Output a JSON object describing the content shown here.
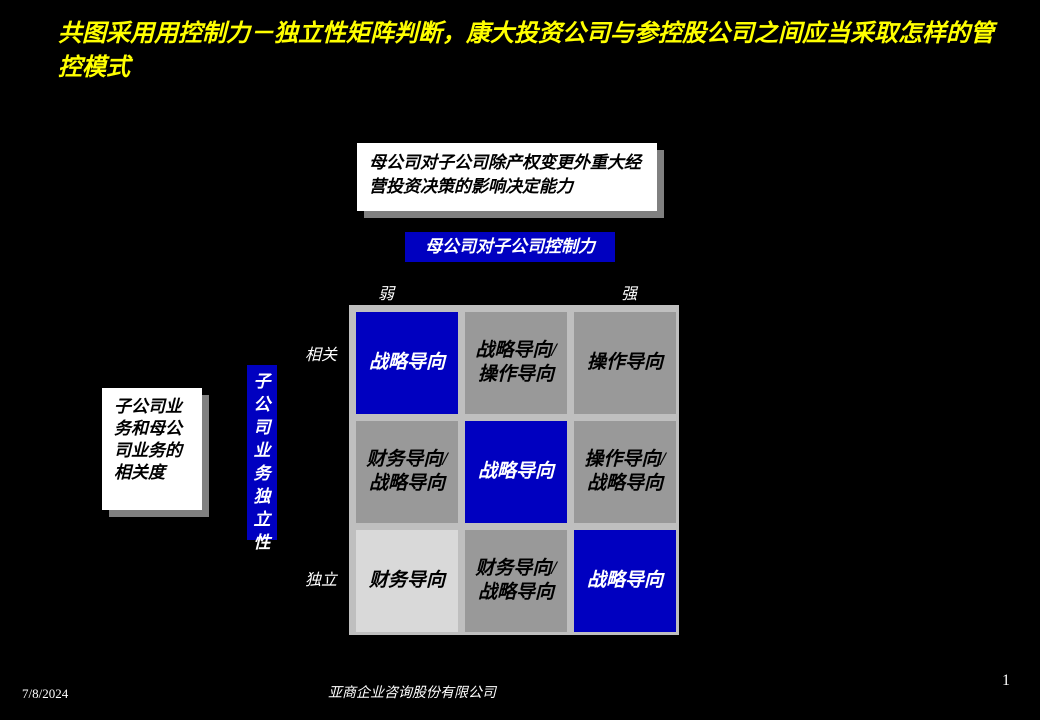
{
  "title": "共图采用用控制力－独立性矩阵判断，康大投资公司与参控股公司之间应当采取怎样的管控模式",
  "top_desc": "母公司对子公司除产权变更外重大经营投资决策的影响决定能力",
  "left_desc": "子公司业务和母公司业务的相关度",
  "x_axis": {
    "label": "母公司对子公司控制力",
    "weak": "弱",
    "strong": "强"
  },
  "y_axis": {
    "label": "子公司业务独立性",
    "related": "相关",
    "independent": "独立"
  },
  "matrix": {
    "type": "grid",
    "rows": 3,
    "cols": 3,
    "background": "#bfbfbf",
    "cell_gap": 7,
    "cell_size": 102,
    "colors": {
      "blue": {
        "bg": "#0000c0",
        "fg": "#ffffff"
      },
      "gray": {
        "bg": "#999999",
        "fg": "#000000"
      },
      "light": {
        "bg": "#d9d9d9",
        "fg": "#000000"
      }
    },
    "cells": [
      {
        "r": 0,
        "c": 0,
        "text": "战略导向",
        "style": "blue"
      },
      {
        "r": 0,
        "c": 1,
        "text": "战略导向/操作导向",
        "style": "gray"
      },
      {
        "r": 0,
        "c": 2,
        "text": "操作导向",
        "style": "gray"
      },
      {
        "r": 1,
        "c": 0,
        "text": "财务导向/战略导向",
        "style": "gray"
      },
      {
        "r": 1,
        "c": 1,
        "text": "战略导向",
        "style": "blue"
      },
      {
        "r": 1,
        "c": 2,
        "text": "操作导向/战略导向",
        "style": "gray"
      },
      {
        "r": 2,
        "c": 0,
        "text": "财务导向",
        "style": "light"
      },
      {
        "r": 2,
        "c": 1,
        "text": "财务导向/战略导向",
        "style": "gray"
      },
      {
        "r": 2,
        "c": 2,
        "text": "战略导向",
        "style": "blue"
      }
    ]
  },
  "footer": {
    "date": "7/8/2024",
    "company": "亚商企业咨询股份有限公司",
    "page": "1"
  },
  "styling": {
    "page_bg": "#000000",
    "title_color": "#ffff00",
    "title_fontsize": 24,
    "axis_label_bg": "#0000c0",
    "axis_label_fg": "#ffffff",
    "desc_box_bg": "#ffffff",
    "desc_box_fg": "#000000",
    "desc_shadow": "#808080",
    "axis_tick_color": "#ffffff",
    "font_family": "SimSun",
    "footer_color": "#ffffff"
  }
}
